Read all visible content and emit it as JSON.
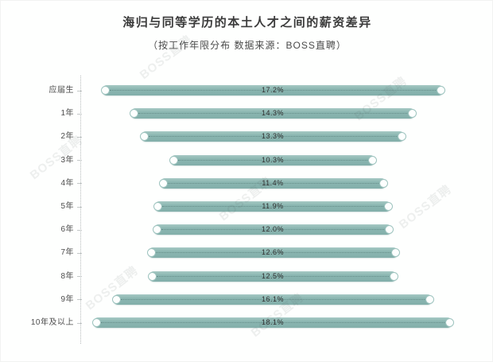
{
  "chart": {
    "title": "海归与同等学历的本土人才之间的薪资差异",
    "subtitle": "（按工作年限分布 数据来源：BOSS直聘）"
  },
  "watermark": {
    "text": "BOSS直聘"
  },
  "chart_data": {
    "type": "bar",
    "orientation": "horizontal",
    "layout": "centered-funnel",
    "title": "海归与同等学历的本土人才之间的薪资差异",
    "subtitle": "（按工作年限分布 数据来源：BOSS直聘）",
    "categories": [
      "应届生",
      "1年",
      "2年",
      "3年",
      "4年",
      "5年",
      "6年",
      "7年",
      "8年",
      "9年",
      "10年及以上"
    ],
    "values": [
      17.2,
      14.3,
      13.3,
      10.3,
      11.4,
      11.9,
      12.0,
      12.6,
      12.5,
      16.1,
      18.1
    ],
    "value_labels": [
      "17.2%",
      "14.3%",
      "13.3%",
      "10.3%",
      "11.4%",
      "11.9%",
      "12.0%",
      "12.6%",
      "12.5%",
      "16.1%",
      "18.1%"
    ],
    "unit": "%",
    "value_range": [
      0,
      20
    ],
    "bar_color": "#8ab5b0",
    "grid": false,
    "legend": false,
    "source": "BOSS直聘"
  }
}
